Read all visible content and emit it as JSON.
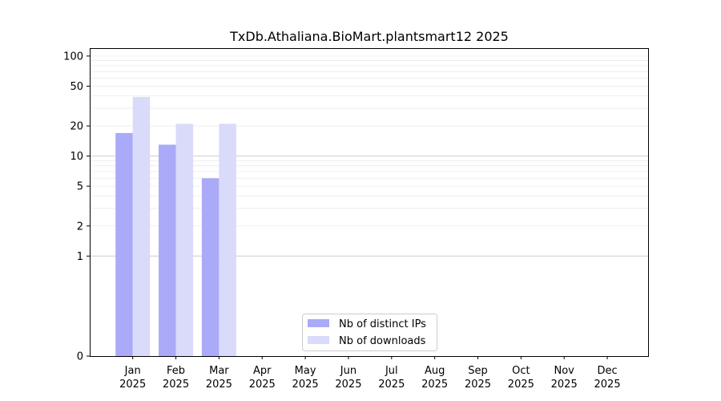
{
  "chart_data": {
    "type": "bar",
    "title": "TxDb.Athaliana.BioMart.plantsmart12 2025",
    "xlabel": "",
    "ylabel": "",
    "y_scale": "symlog",
    "ylim": [
      0,
      120
    ],
    "y_ticks": [
      0,
      1,
      2,
      5,
      10,
      20,
      50,
      100
    ],
    "categories": [
      {
        "month": "Jan",
        "year": "2025"
      },
      {
        "month": "Feb",
        "year": "2025"
      },
      {
        "month": "Mar",
        "year": "2025"
      },
      {
        "month": "Apr",
        "year": "2025"
      },
      {
        "month": "May",
        "year": "2025"
      },
      {
        "month": "Jun",
        "year": "2025"
      },
      {
        "month": "Jul",
        "year": "2025"
      },
      {
        "month": "Aug",
        "year": "2025"
      },
      {
        "month": "Sep",
        "year": "2025"
      },
      {
        "month": "Oct",
        "year": "2025"
      },
      {
        "month": "Nov",
        "year": "2025"
      },
      {
        "month": "Dec",
        "year": "2025"
      }
    ],
    "series": [
      {
        "name": "Nb of distinct IPs",
        "color": "#aaaaf8",
        "values": [
          17,
          13,
          6,
          0,
          0,
          0,
          0,
          0,
          0,
          0,
          0,
          0
        ]
      },
      {
        "name": "Nb of downloads",
        "color": "#dadafa",
        "values": [
          39,
          21,
          21,
          0,
          0,
          0,
          0,
          0,
          0,
          0,
          0,
          0
        ]
      }
    ],
    "grid": true,
    "legend_position": "bottom-center"
  }
}
